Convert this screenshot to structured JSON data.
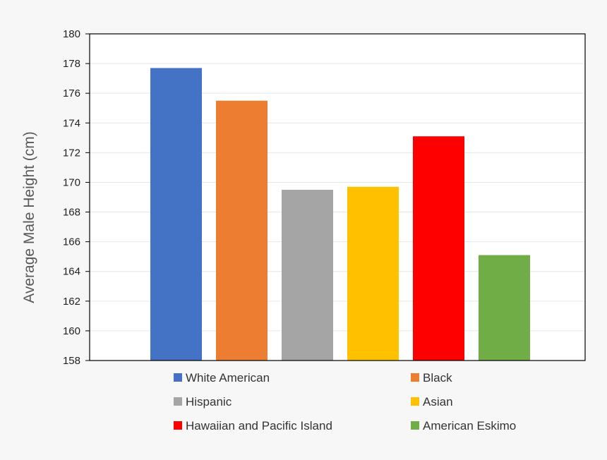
{
  "chart_data": {
    "type": "bar",
    "title": "",
    "xlabel": "",
    "ylabel": "Average Male Height (cm)",
    "ylim": [
      158,
      180
    ],
    "yticks": [
      158,
      160,
      162,
      164,
      166,
      168,
      170,
      172,
      174,
      176,
      178,
      180
    ],
    "grid": true,
    "legend_position": "bottom",
    "series": [
      {
        "name": "White American",
        "value": 177.7,
        "color": "#4472c4"
      },
      {
        "name": "Black",
        "value": 175.5,
        "color": "#ed7d31"
      },
      {
        "name": "Hispanic",
        "value": 169.5,
        "color": "#a5a5a5"
      },
      {
        "name": "Asian",
        "value": 169.7,
        "color": "#ffc000"
      },
      {
        "name": "Hawaiian and Pacific Island",
        "value": 173.1,
        "color": "#ff0000"
      },
      {
        "name": "American Eskimo",
        "value": 165.1,
        "color": "#70ad47"
      }
    ]
  }
}
